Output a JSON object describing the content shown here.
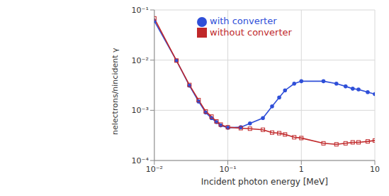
{
  "chart_data": {
    "type": "line",
    "x_label": "Incident photon energy [MeV]",
    "y_label": "nelectrons/nincident γ",
    "x": [
      0.01,
      0.02,
      0.03,
      0.04,
      0.05,
      0.06,
      0.07,
      0.08,
      0.1,
      0.15,
      0.2,
      0.3,
      0.4,
      0.5,
      0.6,
      0.8,
      1,
      2,
      3,
      4,
      5,
      6,
      8,
      10
    ],
    "series": [
      {
        "name": "with converter",
        "color": "#2f4fd8",
        "marker": "circle",
        "values": [
          0.06,
          0.0098,
          0.0031,
          0.0015,
          0.0009,
          0.0007,
          0.00058,
          0.0005,
          0.00045,
          0.00046,
          0.00055,
          0.0007,
          0.0012,
          0.0018,
          0.0025,
          0.0034,
          0.0038,
          0.0038,
          0.0034,
          0.003,
          0.0027,
          0.0026,
          0.0023,
          0.0021
        ]
      },
      {
        "name": "without converter",
        "color": "#c0282a",
        "marker": "square",
        "values": [
          0.068,
          0.0098,
          0.0032,
          0.0016,
          0.00095,
          0.00075,
          0.0006,
          0.00052,
          0.00046,
          0.00044,
          0.00043,
          0.00041,
          0.00036,
          0.00035,
          0.00033,
          0.00029,
          0.00028,
          0.00022,
          0.00021,
          0.00022,
          0.00023,
          0.00023,
          0.00024,
          0.00025
        ]
      }
    ],
    "xlim": [
      0.01,
      10
    ],
    "ylim": [
      0.0001,
      0.1
    ],
    "xticks": [
      {
        "value": 0.01,
        "label": "10⁻²"
      },
      {
        "value": 0.1,
        "label": "10⁻¹"
      },
      1,
      10
    ],
    "yticks": [
      {
        "value": 0.0001,
        "label": "10⁻⁴"
      },
      {
        "value": 0.001,
        "label": "10⁻³"
      },
      {
        "value": 0.01,
        "label": "10⁻²"
      },
      {
        "value": 0.1,
        "label": "10⁻¹"
      }
    ],
    "log": true,
    "grid": true,
    "legend": "upper right"
  }
}
